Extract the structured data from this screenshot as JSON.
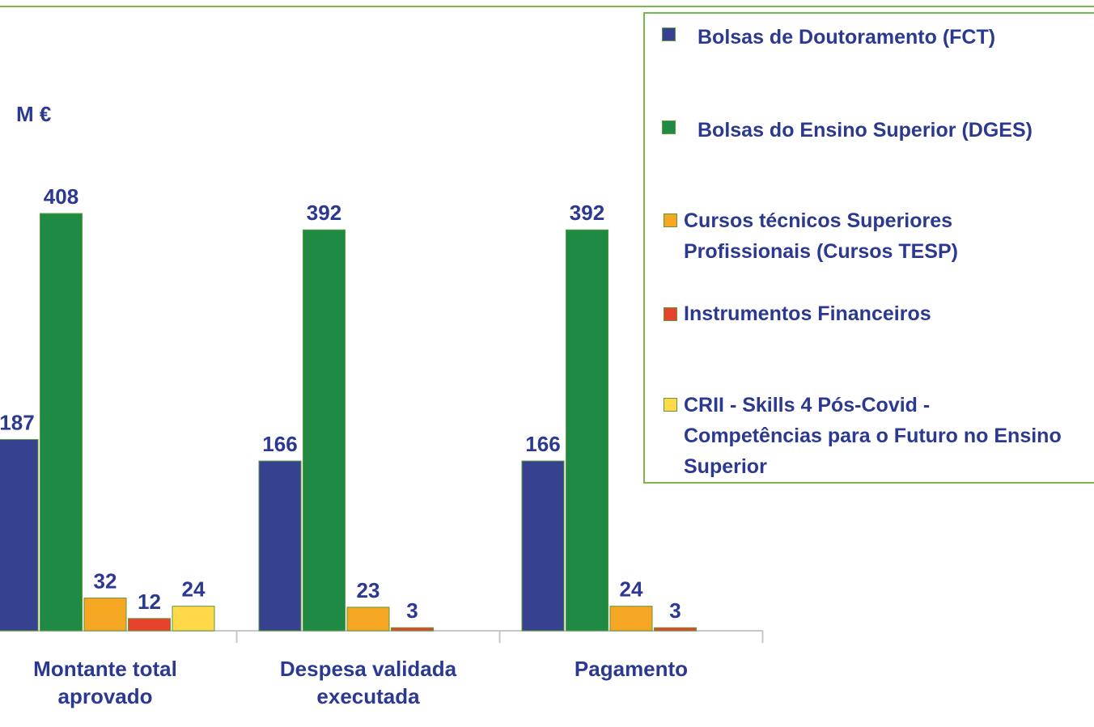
{
  "chart_data": {
    "type": "bar",
    "unit_label": "M €",
    "categories": [
      "Montante total aprovado",
      "Despesa validada executada",
      "Pagamento"
    ],
    "series": [
      {
        "name": "Bolsas de Doutoramento (FCT)",
        "color": "#36428f",
        "values": [
          187,
          166,
          166
        ]
      },
      {
        "name": "Bolsas do Ensino Superior (DGES)",
        "color": "#1e8a44",
        "values": [
          408,
          392,
          392
        ]
      },
      {
        "name": "Cursos técnicos Superiores Profissionais (Cursos TESP)",
        "color": "#f5a623",
        "values": [
          32,
          23,
          24
        ]
      },
      {
        "name": "Instrumentos Financeiros",
        "color": "#e8412c",
        "values": [
          12,
          3,
          3
        ]
      },
      {
        "name": "CRII - Skills 4 Pós-Covid - Competências para o Futuro no Ensino Superior",
        "color": "#ffd94a",
        "values": [
          24,
          null,
          null
        ]
      }
    ]
  }
}
